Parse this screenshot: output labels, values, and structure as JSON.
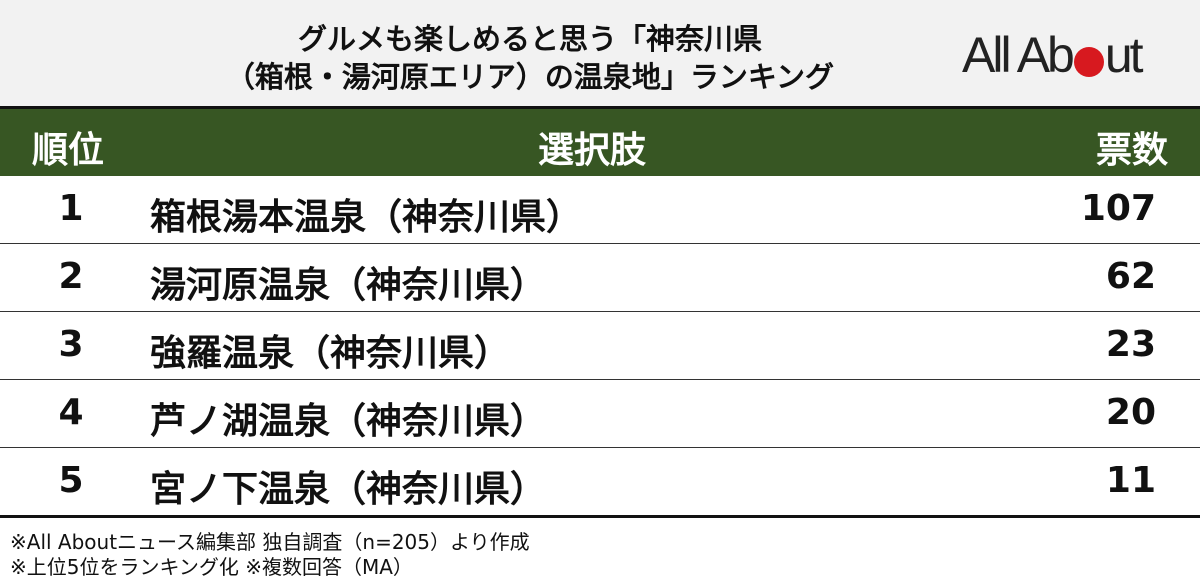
{
  "title": {
    "line1": "グルメも楽しめると思う「神奈川県",
    "line2": "（箱根・湯河原エリア）の温泉地」ランキング"
  },
  "logo": {
    "text_left": "All Ab",
    "text_right": "ut",
    "accent": "#d7191f"
  },
  "table": {
    "header_color": "#375623",
    "headers": {
      "rank": "順位",
      "choice": "選択肢",
      "votes": "票数"
    },
    "rows": [
      {
        "rank": "1",
        "name": "箱根湯本温泉（神奈川県）",
        "votes": "107"
      },
      {
        "rank": "2",
        "name": "湯河原温泉（神奈川県）",
        "votes": "62"
      },
      {
        "rank": "3",
        "name": "強羅温泉（神奈川県）",
        "votes": "23"
      },
      {
        "rank": "4",
        "name": "芦ノ湖温泉（神奈川県）",
        "votes": "20"
      },
      {
        "rank": "5",
        "name": "宮ノ下温泉（神奈川県）",
        "votes": "11"
      }
    ]
  },
  "notes": [
    "※All Aboutニュース編集部 独自調査（n=205）より作成",
    "※上位5位をランキング化 ※複数回答（MA）"
  ]
}
